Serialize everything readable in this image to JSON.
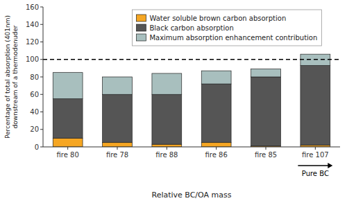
{
  "chart_data": {
    "type": "bar",
    "stacked": true,
    "categories": [
      "fire 80",
      "fire 78",
      "fire 88",
      "fire 86",
      "fire 85",
      "fire 107"
    ],
    "series": [
      {
        "name": "Water soluble brown carbon absorption",
        "color": "#f5a623",
        "values": [
          10,
          5,
          3,
          5,
          1,
          2
        ]
      },
      {
        "name": "Black carbon absorption",
        "color": "#555555",
        "values": [
          45,
          55,
          57,
          67,
          79,
          91
        ]
      },
      {
        "name": "Maximum absorption enhancement contribution",
        "color": "#a8bfbe",
        "values": [
          30,
          20,
          24,
          15,
          9,
          13
        ]
      }
    ],
    "ylim": [
      0,
      160
    ],
    "yticks": [
      0,
      20,
      40,
      60,
      80,
      100,
      120,
      140,
      160
    ],
    "ylabel": "Percentage of total absorption (401nm)\ndownstream of a thermodenuder",
    "xlabel": "Relative BC/OA mass",
    "hline": 100,
    "annotations": [
      {
        "text": "Pure BC",
        "category": "fire 107"
      }
    ],
    "legend": "upper left",
    "grid": false
  }
}
